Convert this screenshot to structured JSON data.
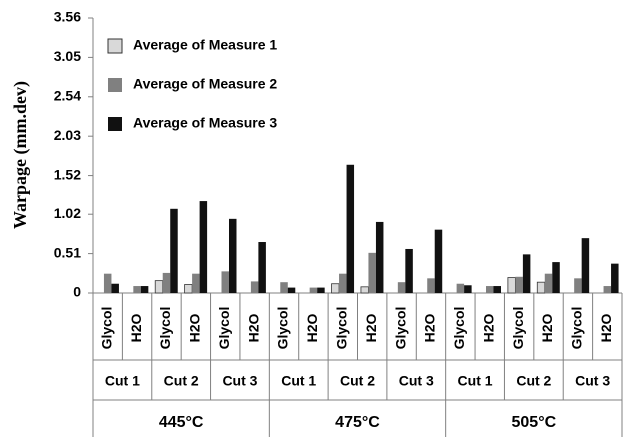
{
  "chart_data": {
    "type": "bar",
    "y_label": "Warpage (mm.dev)",
    "ylim": [
      0,
      3.56
    ],
    "yticks": [
      0,
      0.51,
      1.02,
      1.52,
      2.03,
      2.54,
      3.05,
      3.56
    ],
    "legend_position": "upper-left",
    "groups": [
      {
        "label": "445°C",
        "subgroups": [
          {
            "label": "Cut 1",
            "categories": [
              "Glycol",
              "H2O"
            ]
          },
          {
            "label": "Cut 2",
            "categories": [
              "Glycol",
              "H2O"
            ]
          },
          {
            "label": "Cut 3",
            "categories": [
              "Glycol",
              "H2O"
            ]
          }
        ]
      },
      {
        "label": "475°C",
        "subgroups": [
          {
            "label": "Cut 1",
            "categories": [
              "Glycol",
              "H2O"
            ]
          },
          {
            "label": "Cut 2",
            "categories": [
              "Glycol",
              "H2O"
            ]
          },
          {
            "label": "Cut 3",
            "categories": [
              "Glycol",
              "H2O"
            ]
          }
        ]
      },
      {
        "label": "505°C",
        "subgroups": [
          {
            "label": "Cut 1",
            "categories": [
              "Glycol",
              "H2O"
            ]
          },
          {
            "label": "Cut 2",
            "categories": [
              "Glycol",
              "H2O"
            ]
          },
          {
            "label": "Cut 3",
            "categories": [
              "Glycol",
              "H2O"
            ]
          }
        ]
      }
    ],
    "series": [
      {
        "name": "Average of Measure 1",
        "color": "#d9d9d9",
        "values": [
          0,
          0,
          0.16,
          0.11,
          0,
          0,
          0,
          0,
          0.12,
          0.08,
          0,
          0,
          0,
          0,
          0.2,
          0.14,
          0,
          0
        ]
      },
      {
        "name": "Average of Measure 2",
        "color": "#808080",
        "values": [
          0.25,
          0.09,
          0.26,
          0.25,
          0.28,
          0.15,
          0.14,
          0.07,
          0.25,
          0.52,
          0.14,
          0.19,
          0.12,
          0.09,
          0.21,
          0.25,
          0.19,
          0.09
        ]
      },
      {
        "name": "Average of Measure 3",
        "color": "#111111",
        "values": [
          0.12,
          0.09,
          1.09,
          1.19,
          0.96,
          0.66,
          0.07,
          0.07,
          1.66,
          0.92,
          0.57,
          0.82,
          0.1,
          0.09,
          0.5,
          0.4,
          0.71,
          0.38
        ]
      }
    ]
  }
}
